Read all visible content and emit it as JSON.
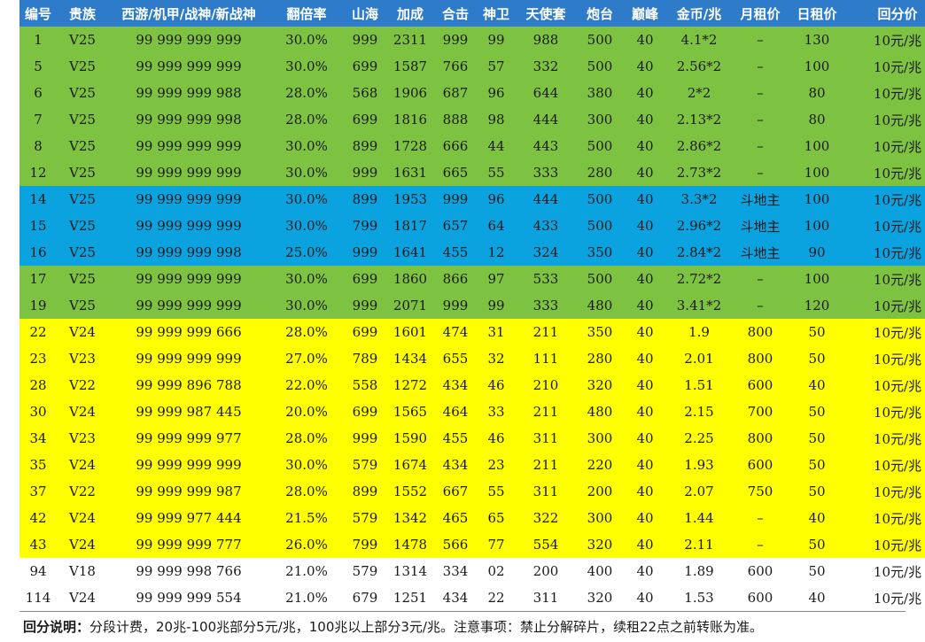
{
  "headers": [
    "编号",
    "贵族",
    "西游/机甲/战神/新战神",
    "翻倍率",
    "山海",
    "加成",
    "合击",
    "神卫",
    "天使套",
    "炮台",
    "巅峰",
    "金币/兆",
    "月租价",
    "日租价",
    "回分价"
  ],
  "rows": [
    {
      "band": "green",
      "cells": [
        "1",
        "V25",
        "99 999 999 999",
        "30.0%",
        "999",
        "2311",
        "999",
        "99",
        "988",
        "500",
        "40",
        "4.1*2",
        "–",
        "130",
        "10元/兆"
      ]
    },
    {
      "band": "green",
      "cells": [
        "5",
        "V25",
        "99 999 999 999",
        "30.0%",
        "699",
        "1587",
        "766",
        "57",
        "332",
        "500",
        "40",
        "2.56*2",
        "–",
        "100",
        "10元/兆"
      ]
    },
    {
      "band": "green",
      "cells": [
        "6",
        "V25",
        "99 999 999 988",
        "28.0%",
        "568",
        "1906",
        "687",
        "96",
        "644",
        "380",
        "40",
        "2*2",
        "–",
        "80",
        "10元/兆"
      ]
    },
    {
      "band": "green",
      "cells": [
        "7",
        "V25",
        "99 999 999 998",
        "28.0%",
        "699",
        "1816",
        "888",
        "98",
        "444",
        "300",
        "40",
        "2.13*2",
        "–",
        "80",
        "10元/兆"
      ]
    },
    {
      "band": "green",
      "cells": [
        "8",
        "V25",
        "99 999 999 999",
        "30.0%",
        "899",
        "1728",
        "666",
        "44",
        "443",
        "500",
        "40",
        "2.86*2",
        "–",
        "100",
        "10元/兆"
      ]
    },
    {
      "band": "green",
      "cells": [
        "12",
        "V25",
        "99 999 999 999",
        "30.0%",
        "999",
        "1631",
        "665",
        "55",
        "333",
        "280",
        "40",
        "2.73*2",
        "–",
        "100",
        "10元/兆"
      ]
    },
    {
      "band": "blue",
      "cells": [
        "14",
        "V25",
        "99 999 999 999",
        "30.0%",
        "899",
        "1953",
        "999",
        "96",
        "444",
        "500",
        "40",
        "3.3*2",
        "斗地主",
        "100",
        "10元/兆"
      ]
    },
    {
      "band": "blue",
      "cells": [
        "15",
        "V25",
        "99 999 999 999",
        "30.0%",
        "799",
        "1817",
        "657",
        "64",
        "433",
        "500",
        "40",
        "2.96*2",
        "斗地主",
        "100",
        "10元/兆"
      ]
    },
    {
      "band": "blue",
      "cells": [
        "16",
        "V25",
        "99 999 999 998",
        "25.0%",
        "999",
        "1641",
        "455",
        "12",
        "324",
        "350",
        "40",
        "2.84*2",
        "斗地主",
        "90",
        "10元/兆"
      ]
    },
    {
      "band": "green",
      "cells": [
        "17",
        "V25",
        "99 999 999 999",
        "30.0%",
        "699",
        "1860",
        "866",
        "97",
        "533",
        "500",
        "40",
        "2.72*2",
        "–",
        "100",
        "10元/兆"
      ]
    },
    {
      "band": "green",
      "cells": [
        "19",
        "V25",
        "99 999 999 999",
        "30.0%",
        "999",
        "2071",
        "999",
        "99",
        "333",
        "480",
        "40",
        "3.41*2",
        "–",
        "120",
        "10元/兆"
      ]
    },
    {
      "band": "yellow",
      "cells": [
        "22",
        "V24",
        "99 999 999 666",
        "28.0%",
        "699",
        "1601",
        "474",
        "31",
        "211",
        "350",
        "40",
        "1.9",
        "800",
        "50",
        "10元/兆"
      ]
    },
    {
      "band": "yellow",
      "cells": [
        "23",
        "V23",
        "99 999 999 999",
        "27.0%",
        "789",
        "1434",
        "655",
        "32",
        "111",
        "280",
        "40",
        "2.01",
        "800",
        "50",
        "10元/兆"
      ]
    },
    {
      "band": "yellow",
      "cells": [
        "28",
        "V22",
        "99 999 896 788",
        "22.0%",
        "558",
        "1272",
        "434",
        "46",
        "210",
        "320",
        "40",
        "1.51",
        "600",
        "40",
        "10元/兆"
      ]
    },
    {
      "band": "yellow",
      "cells": [
        "30",
        "V24",
        "99 999 987 445",
        "20.0%",
        "699",
        "1565",
        "464",
        "33",
        "211",
        "480",
        "40",
        "2.15",
        "700",
        "50",
        "10元/兆"
      ]
    },
    {
      "band": "yellow",
      "cells": [
        "34",
        "V23",
        "99 999 999 977",
        "28.0%",
        "999",
        "1590",
        "455",
        "46",
        "311",
        "300",
        "40",
        "2.25",
        "800",
        "50",
        "10元/兆"
      ]
    },
    {
      "band": "yellow",
      "cells": [
        "35",
        "V24",
        "99 999 999 999",
        "30.0%",
        "579",
        "1674",
        "434",
        "23",
        "211",
        "220",
        "40",
        "1.93",
        "600",
        "50",
        "10元/兆"
      ]
    },
    {
      "band": "yellow",
      "cells": [
        "37",
        "V22",
        "99 999 999 987",
        "28.0%",
        "899",
        "1552",
        "667",
        "55",
        "311",
        "200",
        "40",
        "2.07",
        "750",
        "50",
        "10元/兆"
      ]
    },
    {
      "band": "yellow",
      "cells": [
        "42",
        "V24",
        "99 999 977 444",
        "21.5%",
        "579",
        "1342",
        "465",
        "65",
        "322",
        "300",
        "40",
        "1.44",
        "–",
        "40",
        "10元/兆"
      ]
    },
    {
      "band": "yellow",
      "cells": [
        "43",
        "V24",
        "99 999 999 777",
        "26.0%",
        "799",
        "1478",
        "566",
        "77",
        "554",
        "320",
        "40",
        "2.11",
        "–",
        "50",
        "10元/兆"
      ]
    },
    {
      "band": "white",
      "cells": [
        "94",
        "V18",
        "99 999 998 766",
        "21.0%",
        "579",
        "1314",
        "334",
        "02",
        "200",
        "400",
        "40",
        "1.89",
        "600",
        "50",
        "10元/兆"
      ]
    },
    {
      "band": "white",
      "cells": [
        "114",
        "V24",
        "99 999 999 554",
        "21.0%",
        "679",
        "1251",
        "434",
        "22",
        "311",
        "320",
        "40",
        "1.53",
        "600",
        "40",
        "10元/兆"
      ]
    }
  ],
  "note": {
    "label": "回分说明：",
    "text": "分段计费，20兆-100兆部分5元/兆，100兆以上部分3元/兆。注意事项：禁止分解碎片，续租22点之前转账为准。"
  },
  "colors": {
    "header": "#2e7cc9",
    "green": "#7ec242",
    "blue": "#0aa2df",
    "yellow": "#ffff00",
    "white": "#ffffff"
  }
}
